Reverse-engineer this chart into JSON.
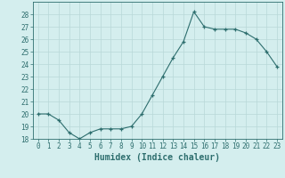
{
  "x": [
    0,
    1,
    2,
    3,
    4,
    5,
    6,
    7,
    8,
    9,
    10,
    11,
    12,
    13,
    14,
    15,
    16,
    17,
    18,
    19,
    20,
    21,
    22,
    23
  ],
  "y": [
    20,
    20,
    19.5,
    18.5,
    18,
    18.5,
    18.8,
    18.8,
    18.8,
    19,
    20,
    21.5,
    23,
    24.5,
    25.8,
    28.2,
    27,
    26.8,
    26.8,
    26.8,
    26.5,
    26,
    25,
    23.8
  ],
  "xlabel": "Humidex (Indice chaleur)",
  "xlim": [
    -0.5,
    23.5
  ],
  "ylim": [
    18,
    29
  ],
  "yticks": [
    18,
    19,
    20,
    21,
    22,
    23,
    24,
    25,
    26,
    27,
    28
  ],
  "xtick_labels": [
    "0",
    "1",
    "2",
    "3",
    "4",
    "5",
    "6",
    "7",
    "8",
    "9",
    "10",
    "11",
    "12",
    "13",
    "14",
    "15",
    "16",
    "17",
    "18",
    "19",
    "20",
    "21",
    "22",
    "23"
  ],
  "line_color": "#2d6e6e",
  "marker": "+",
  "bg_color": "#d4eeee",
  "grid_color": "#b8d8d8",
  "tick_fontsize": 5.5,
  "xlabel_fontsize": 7.0,
  "linewidth": 0.8,
  "markersize": 3.5
}
